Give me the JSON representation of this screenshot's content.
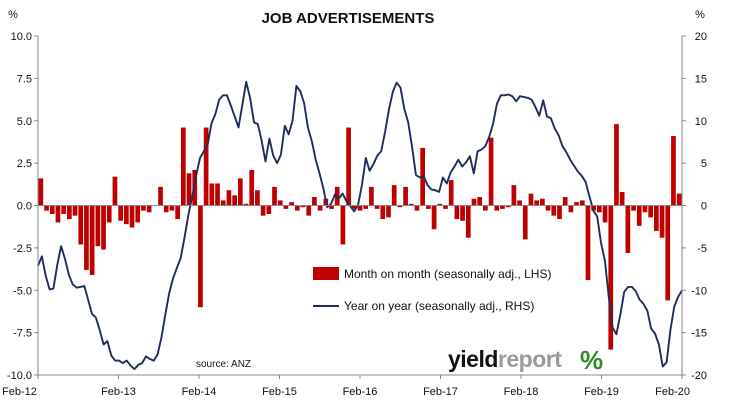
{
  "chart_data": {
    "type": "bar+line",
    "title": "JOB ADVERTISEMENTS",
    "left_unit": "%",
    "right_unit": "%",
    "ylim_left": [
      -10.0,
      10.0
    ],
    "ylim_right": [
      -20,
      20
    ],
    "left_ticks": [
      "10.0",
      "7.5",
      "5.0",
      "2.5",
      "0.0",
      "-2.5",
      "-5.0",
      "-7.5",
      "-10.0"
    ],
    "right_ticks": [
      "20",
      "15",
      "10",
      "5",
      "0",
      "-5",
      "-10",
      "-15",
      "-20"
    ],
    "x_ticks": [
      "Feb-12",
      "Feb-13",
      "Feb-14",
      "Feb-15",
      "Feb-16",
      "Feb-17",
      "Feb-18",
      "Feb-19",
      "Feb-20"
    ],
    "grid": false,
    "legend_position": "lower-center",
    "colors": {
      "bar": "#c00000",
      "line": "#1f2d5c"
    },
    "series": [
      {
        "name": "Month on month (seasonally adj., LHS)",
        "axis": "left",
        "kind": "bar",
        "values": [
          1.6,
          -0.3,
          -0.5,
          -1.0,
          -0.5,
          -0.8,
          -0.6,
          -2.3,
          -3.8,
          -4.1,
          -2.4,
          -2.6,
          -1.0,
          1.7,
          -0.9,
          -1.1,
          -1.3,
          -1.0,
          -0.3,
          -0.4,
          0.0,
          1.1,
          -0.4,
          -0.3,
          -0.8,
          4.6,
          1.9,
          2.1,
          -6.0,
          4.6,
          1.3,
          1.3,
          0.3,
          0.9,
          0.6,
          1.6,
          0.1,
          2.1,
          0.9,
          -0.6,
          -0.5,
          1.1,
          0.3,
          -0.2,
          0.2,
          -0.3,
          -0.1,
          -0.6,
          0.5,
          -0.3,
          0.4,
          -0.2,
          1.1,
          -2.3,
          4.6,
          -0.2,
          -0.3,
          -0.2,
          1.1,
          -0.2,
          -0.8,
          -0.7,
          1.2,
          -0.1,
          1.1,
          0.1,
          -0.3,
          3.4,
          -0.2,
          -1.4,
          0.1,
          -0.2,
          1.5,
          -0.8,
          -0.9,
          -1.9,
          0.4,
          0.5,
          -0.3,
          4.0,
          -0.3,
          -0.2,
          -0.1,
          1.2,
          0.3,
          -2.0,
          0.7,
          0.3,
          0.4,
          -0.3,
          -0.6,
          -0.8,
          0.5,
          -0.4,
          0.2,
          0.3,
          -4.4,
          -0.3,
          -0.4,
          -1.0,
          -8.5,
          4.8,
          0.8,
          -2.8,
          -0.3,
          -1.2,
          -0.4,
          -0.7,
          -1.5,
          -1.9,
          -5.6,
          4.1,
          0.7
        ]
      },
      {
        "name": "Year on year (seasonally adj., RHS)",
        "axis": "right",
        "kind": "line",
        "values": [
          -7.1,
          -6.0,
          -8.3,
          -9.9,
          -9.8,
          -7.0,
          -4.8,
          -6.3,
          -8.2,
          -9.3,
          -9.7,
          -9.6,
          -9.5,
          -11.1,
          -12.8,
          -13.2,
          -14.7,
          -16.4,
          -16.0,
          -17.7,
          -18.3,
          -18.3,
          -18.6,
          -18.3,
          -18.9,
          -19.3,
          -18.8,
          -18.6,
          -17.8,
          -18.1,
          -18.3,
          -17.6,
          -15.6,
          -12.9,
          -10.4,
          -8.6,
          -7.4,
          -6.2,
          -3.8,
          -1.1,
          1.1,
          3.5,
          5.6,
          6.4,
          7.2,
          9.7,
          10.8,
          12.5,
          13.0,
          13.0,
          11.8,
          10.5,
          9.2,
          11.9,
          14.6,
          12.7,
          9.8,
          9.6,
          7.6,
          5.2,
          7.9,
          5.9,
          5.0,
          6.0,
          9.4,
          8.4,
          10.0,
          14.1,
          13.5,
          12.1,
          9.2,
          7.6,
          5.4,
          3.8,
          2.0,
          -0.2,
          0.2,
          1.3,
          0.8,
          1.4,
          0.5,
          -0.1,
          -0.7,
          0.1,
          2.4,
          5.6,
          4.1,
          4.9,
          5.9,
          6.4,
          8.7,
          11.3,
          13.4,
          14.5,
          13.9,
          11.4,
          9.8,
          6.9,
          3.6,
          3.3,
          3.5,
          2.4,
          1.9,
          1.8,
          1.6,
          3.3,
          2.6,
          3.9,
          4.6,
          5.4,
          4.6,
          5.1,
          5.8,
          3.8,
          6.4,
          6.6,
          7.0,
          8.1,
          9.6,
          12.0,
          13.0,
          13.0,
          13.1,
          12.9,
          12.3,
          12.9,
          12.8,
          12.7,
          12.5,
          11.6,
          10.6,
          12.4,
          10.5,
          10.3,
          9.1,
          8.3,
          7.0,
          6.3,
          5.4,
          4.7,
          4.0,
          3.5,
          2.8,
          1.1,
          -0.6,
          -1.3,
          -4.4,
          -6.5,
          -10.7,
          -14.4,
          -15.2,
          -12.9,
          -10.2,
          -9.6,
          -9.6,
          -10.1,
          -11.1,
          -11.6,
          -12.4,
          -14.5,
          -15.1,
          -16.4,
          -19.0,
          -18.5,
          -14.7,
          -11.9,
          -10.8,
          -10.0
        ]
      }
    ],
    "annotation": "source: ANZ"
  },
  "branding": {
    "word_a": "yield",
    "word_b": "report",
    "symbol": "%"
  }
}
